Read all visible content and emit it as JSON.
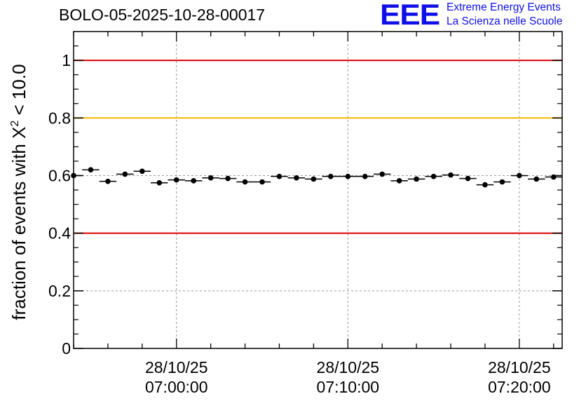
{
  "header": {
    "title": "BOLO-05-2025-10-28-00017"
  },
  "logo": {
    "mark": "EEE",
    "line1": "Extreme Energy Events",
    "line2": "La Scienza nelle Scuole",
    "color": "#1010e8"
  },
  "chart_data": {
    "type": "scatter",
    "title": "BOLO-05-2025-10-28-00017",
    "ylabel_main": "fraction of events with ",
    "ylabel_symbol": "X",
    "ylabel_sup": "2",
    "ylabel_tail": " < 10.0",
    "xlabel": "",
    "ylim": [
      0,
      1.1
    ],
    "yticks": [
      0,
      0.2,
      0.4,
      0.6,
      0.8,
      1
    ],
    "ytick_labels": [
      "0",
      "0.2",
      "0.4",
      "0.6",
      "0.8",
      "1"
    ],
    "xlim_minutes": [
      -6,
      22.5
    ],
    "xticks": [
      {
        "minute": 0,
        "date": "28/10/25",
        "time": "07:00:00"
      },
      {
        "minute": 10,
        "date": "28/10/25",
        "time": "07:10:00"
      },
      {
        "minute": 20,
        "date": "28/10/25",
        "time": "07:20:00"
      }
    ],
    "minor_xtick_step_minutes": 2,
    "reference_lines": [
      {
        "y": 1.0,
        "color": "#dd0000"
      },
      {
        "y": 0.8,
        "color": "#f5b800"
      },
      {
        "y": 0.4,
        "color": "#dd0000"
      }
    ],
    "bin_width_minutes": 1,
    "points": [
      {
        "x": -6.0,
        "y": 0.6
      },
      {
        "x": -5.0,
        "y": 0.62
      },
      {
        "x": -4.0,
        "y": 0.58
      },
      {
        "x": -3.0,
        "y": 0.605
      },
      {
        "x": -2.0,
        "y": 0.615
      },
      {
        "x": -1.0,
        "y": 0.575
      },
      {
        "x": 0.0,
        "y": 0.585
      },
      {
        "x": 1.0,
        "y": 0.582
      },
      {
        "x": 2.0,
        "y": 0.592
      },
      {
        "x": 3.0,
        "y": 0.59
      },
      {
        "x": 4.0,
        "y": 0.578
      },
      {
        "x": 5.0,
        "y": 0.578
      },
      {
        "x": 6.0,
        "y": 0.597
      },
      {
        "x": 7.0,
        "y": 0.592
      },
      {
        "x": 8.0,
        "y": 0.588
      },
      {
        "x": 9.0,
        "y": 0.597
      },
      {
        "x": 10.0,
        "y": 0.597
      },
      {
        "x": 11.0,
        "y": 0.597
      },
      {
        "x": 12.0,
        "y": 0.605
      },
      {
        "x": 13.0,
        "y": 0.582
      },
      {
        "x": 14.0,
        "y": 0.588
      },
      {
        "x": 15.0,
        "y": 0.597
      },
      {
        "x": 16.0,
        "y": 0.602
      },
      {
        "x": 17.0,
        "y": 0.59
      },
      {
        "x": 18.0,
        "y": 0.568
      },
      {
        "x": 19.0,
        "y": 0.578
      },
      {
        "x": 20.0,
        "y": 0.6
      },
      {
        "x": 21.0,
        "y": 0.588
      },
      {
        "x": 22.0,
        "y": 0.595
      }
    ],
    "error_y": 0.008,
    "grid": true
  }
}
